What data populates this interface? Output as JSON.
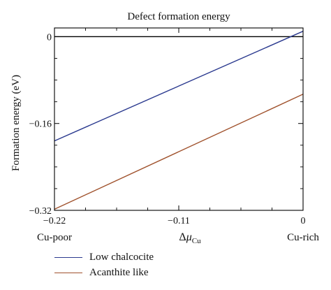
{
  "chart_data": {
    "type": "line",
    "title": "Defect formation energy",
    "ylabel": "Formation energy (eV)",
    "xlabel": {
      "prefix": "Δ",
      "symbol": "μ",
      "subscript": "Cu"
    },
    "xlim": [
      -0.22,
      0
    ],
    "ylim": [
      -0.32,
      0.016
    ],
    "x_ticks": [
      -0.22,
      -0.11,
      0
    ],
    "x_tick_labels": [
      "−0.22",
      "−0.11",
      "0"
    ],
    "x_minor_ticks": [
      -0.1925,
      -0.165,
      -0.1375,
      -0.0825,
      -0.055,
      -0.0275
    ],
    "y_ticks": [
      0,
      -0.16,
      -0.32
    ],
    "y_tick_labels": [
      "0",
      "−0.16",
      "−0.32"
    ],
    "y_minor_ticks": [
      -0.04,
      -0.08,
      -0.12,
      -0.2,
      -0.24,
      -0.28
    ],
    "x_end_labels": {
      "left": "Cu-poor",
      "right": "Cu-rich"
    },
    "zero_line": true,
    "grid": false,
    "legend_position": "bottom-left",
    "series": [
      {
        "name": "Low chalcocite",
        "color": "#2b3a8f",
        "x": [
          -0.22,
          0
        ],
        "y": [
          -0.192,
          0.01
        ]
      },
      {
        "name": "Acanthite like",
        "color": "#a0522d",
        "x": [
          -0.22,
          0
        ],
        "y": [
          -0.318,
          -0.106
        ]
      }
    ]
  }
}
